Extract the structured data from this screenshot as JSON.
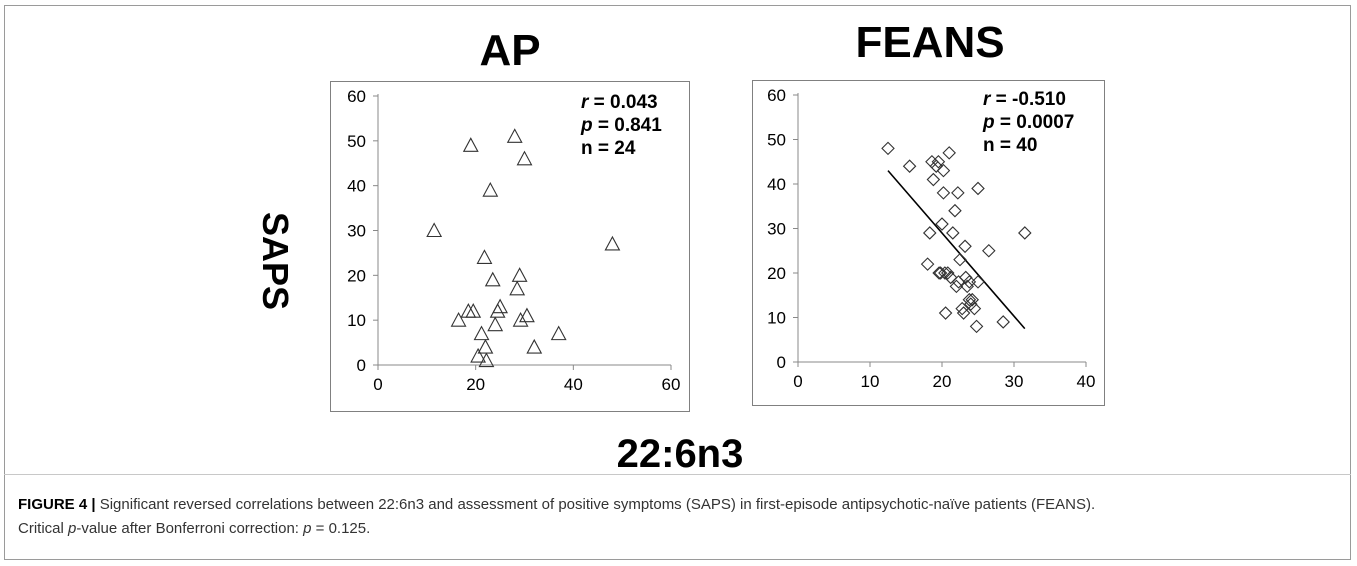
{
  "figure": {
    "panel_titles": [
      "AP",
      "FEANS"
    ],
    "y_axis_label": "SAPS",
    "x_axis_label": "22:6n3",
    "caption_label": "FIGURE 4 |",
    "caption_text": "Significant reversed correlations between 22:6n3 and assessment of positive symptoms (SAPS) in first-episode antipsychotic-naïve patients (FEANS).",
    "caption_line2_prefix": "Critical ",
    "caption_line2_italic": "p",
    "caption_line2_suffix": "-value after Bonferroni correction: ",
    "caption_line2_eq_italic": "p",
    "caption_line2_value": " = 0.125."
  },
  "chart_data": [
    {
      "type": "scatter",
      "title": "AP",
      "xlabel": "22:6n3",
      "ylabel": "SAPS",
      "marker": "triangle",
      "xlim": [
        0,
        60
      ],
      "ylim": [
        0,
        60
      ],
      "xticks": [
        0,
        20,
        40,
        60
      ],
      "yticks": [
        0,
        10,
        20,
        30,
        40,
        50,
        60
      ],
      "stats": {
        "r_label": "r",
        "r_value": " = 0.043",
        "p_label": "p",
        "p_value": " = 0.841",
        "n_text": "n = 24"
      },
      "points": [
        [
          11.5,
          30
        ],
        [
          16.5,
          10
        ],
        [
          18.5,
          12
        ],
        [
          19.5,
          12
        ],
        [
          19,
          49
        ],
        [
          20.5,
          2
        ],
        [
          21.2,
          7
        ],
        [
          21.8,
          24
        ],
        [
          22,
          4
        ],
        [
          22.2,
          1
        ],
        [
          23,
          39
        ],
        [
          23.5,
          19
        ],
        [
          24,
          9
        ],
        [
          24.5,
          12
        ],
        [
          25,
          13
        ],
        [
          28,
          51
        ],
        [
          28.5,
          17
        ],
        [
          29,
          20
        ],
        [
          29.2,
          10
        ],
        [
          30,
          46
        ],
        [
          30.5,
          11
        ],
        [
          32,
          4
        ],
        [
          37,
          7
        ],
        [
          48,
          27
        ]
      ]
    },
    {
      "type": "scatter",
      "title": "FEANS",
      "xlabel": "22:6n3",
      "ylabel": "SAPS",
      "marker": "diamond",
      "xlim": [
        0,
        40
      ],
      "ylim": [
        0,
        60
      ],
      "xticks": [
        0,
        10,
        20,
        30,
        40
      ],
      "yticks": [
        0,
        10,
        20,
        30,
        40,
        50,
        60
      ],
      "stats": {
        "r_label": "r",
        "r_value": " = -0.510",
        "p_label": "p",
        "p_value": " = 0.0007",
        "n_text": "n = 40"
      },
      "trendline": {
        "x": [
          12.5,
          31.5
        ],
        "y": [
          43,
          7.5
        ]
      },
      "points": [
        [
          12.5,
          48
        ],
        [
          15.5,
          44
        ],
        [
          18,
          22
        ],
        [
          18.3,
          29
        ],
        [
          18.6,
          45
        ],
        [
          18.8,
          41
        ],
        [
          19.2,
          44
        ],
        [
          19.5,
          45
        ],
        [
          19.6,
          20
        ],
        [
          19.8,
          20
        ],
        [
          20,
          31
        ],
        [
          20.2,
          43
        ],
        [
          20.2,
          38
        ],
        [
          20.4,
          20
        ],
        [
          20.5,
          11
        ],
        [
          20.8,
          20
        ],
        [
          21,
          47
        ],
        [
          21.2,
          19
        ],
        [
          21.5,
          29
        ],
        [
          21.8,
          34
        ],
        [
          22,
          17
        ],
        [
          22.2,
          38
        ],
        [
          22.5,
          23
        ],
        [
          22.8,
          12
        ],
        [
          23,
          11
        ],
        [
          23.2,
          26
        ],
        [
          23.3,
          19
        ],
        [
          23.5,
          17
        ],
        [
          23.8,
          18
        ],
        [
          23.8,
          14
        ],
        [
          24,
          13
        ],
        [
          24.2,
          14
        ],
        [
          24.5,
          12
        ],
        [
          24.8,
          8
        ],
        [
          25,
          39
        ],
        [
          25,
          18
        ],
        [
          26.5,
          25
        ],
        [
          28.5,
          9
        ],
        [
          31.5,
          29
        ],
        [
          22.3,
          18
        ]
      ]
    }
  ]
}
